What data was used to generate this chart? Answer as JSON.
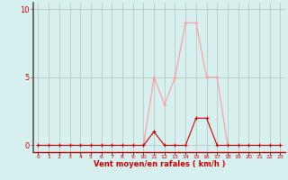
{
  "hours": [
    0,
    1,
    2,
    3,
    4,
    5,
    6,
    7,
    8,
    9,
    10,
    11,
    12,
    13,
    14,
    15,
    16,
    17,
    18,
    19,
    20,
    21,
    22,
    23
  ],
  "rafales": [
    0,
    0,
    0,
    0,
    0,
    0,
    0,
    0,
    0,
    0,
    0,
    5,
    3,
    5,
    9,
    9,
    5,
    5,
    0,
    0,
    0,
    0,
    0,
    0
  ],
  "vent_moyen": [
    0,
    0,
    0,
    0,
    0,
    0,
    0,
    0,
    0,
    0,
    0,
    1,
    0,
    0,
    0,
    2,
    2,
    0,
    0,
    0,
    0,
    0,
    0,
    0
  ],
  "bg_color": "#d6f0f0",
  "line_color_rafales": "#ff9999",
  "line_color_vent": "#cc0000",
  "grid_color": "#b0b0b0",
  "axis_color": "#cc0000",
  "xlabel": "Vent moyen/en rafales ( km/h )",
  "yticks": [
    0,
    5,
    10
  ],
  "ylim": [
    -0.5,
    10.5
  ],
  "xlim": [
    -0.5,
    23.5
  ],
  "left_spine_color": "#555555"
}
